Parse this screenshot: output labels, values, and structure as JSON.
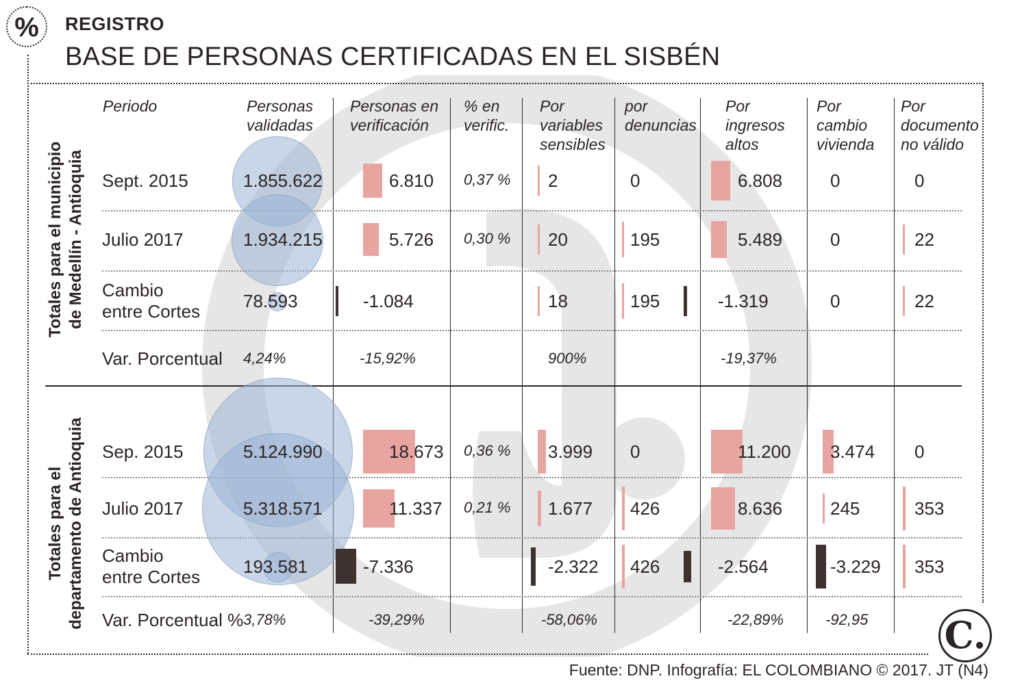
{
  "kicker": "REGISTRO",
  "title": "BASE DE PERSONAS CERTIFICADAS EN EL SISBÉN",
  "badge_symbol": "%",
  "source": "Fuente: DNP. Infografía: EL COLOMBIANO © 2017. JT (N4)",
  "logo_letter": "C.",
  "colors": {
    "bubble": "#9bb4d6",
    "bar_positive": "#e8a4a0",
    "bar_negative": "#3d3230",
    "watermark": "#e6e6e6",
    "text": "#2b2424"
  },
  "chart_data": {
    "type": "table",
    "columns": [
      {
        "key": "periodo",
        "label": "Periodo"
      },
      {
        "key": "validadas",
        "label": "Personas\nvalidadas"
      },
      {
        "key": "verificacion",
        "label": "Personas en\nverificación"
      },
      {
        "key": "pct_verif",
        "label": "% en\nverific."
      },
      {
        "key": "sensibles",
        "label": "Por\nvariables\nsensibles"
      },
      {
        "key": "denuncias",
        "label": "por\ndenuncias"
      },
      {
        "key": "ingresos",
        "label": "Por\ningresos\naltos"
      },
      {
        "key": "vivienda",
        "label": "Por\ncambio\nvivienda"
      },
      {
        "key": "documento",
        "label": "Por\ndocumento\nno válido"
      }
    ],
    "sections": [
      {
        "label": "Totales para el municipio\nde Medellín - Antioquia",
        "rows": [
          {
            "periodo": "Sept. 2015",
            "validadas": 1855622,
            "validadas_txt": "1.855.622",
            "verificacion": 6810,
            "verificacion_txt": "6.810",
            "pct_verif": "0,37 %",
            "sensibles": 2,
            "sensibles_txt": "2",
            "denuncias": 0,
            "denuncias_txt": "0",
            "ingresos": 6808,
            "ingresos_txt": "6.808",
            "vivienda": 0,
            "vivienda_txt": "0",
            "documento": 0,
            "documento_txt": "0"
          },
          {
            "periodo": "Julio 2017",
            "validadas": 1934215,
            "validadas_txt": "1.934.215",
            "verificacion": 5726,
            "verificacion_txt": "5.726",
            "pct_verif": "0,30 %",
            "sensibles": 20,
            "sensibles_txt": "20",
            "denuncias": 195,
            "denuncias_txt": "195",
            "ingresos": 5489,
            "ingresos_txt": "5.489",
            "vivienda": 0,
            "vivienda_txt": "0",
            "documento": 22,
            "documento_txt": "22"
          },
          {
            "periodo": "Cambio\nentre Cortes",
            "validadas": 78593,
            "validadas_txt": "78.593",
            "verificacion": -1084,
            "verificacion_txt": "-1.084",
            "pct_verif": "",
            "sensibles": 18,
            "sensibles_txt": "18",
            "denuncias": 195,
            "denuncias_txt": "195",
            "ingresos": -1319,
            "ingresos_txt": "-1.319",
            "vivienda": 0,
            "vivienda_txt": "0",
            "documento": 22,
            "documento_txt": "22"
          }
        ],
        "variation": {
          "label": "Var. Porcentual",
          "validadas": "4,24%",
          "verificacion": "-15,92%",
          "sensibles": "900%",
          "ingresos": "-19,37%",
          "vivienda": "",
          "documento": ""
        }
      },
      {
        "label": "Totales para el\ndepartamento de Antioquia",
        "rows": [
          {
            "periodo": "Sep. 2015",
            "validadas": 5124990,
            "validadas_txt": "5.124.990",
            "verificacion": 18673,
            "verificacion_txt": "18.673",
            "pct_verif": "0,36 %",
            "sensibles": 3999,
            "sensibles_txt": "3.999",
            "denuncias": 0,
            "denuncias_txt": "0",
            "ingresos": 11200,
            "ingresos_txt": "11.200",
            "vivienda": 3474,
            "vivienda_txt": "3.474",
            "documento": 0,
            "documento_txt": "0"
          },
          {
            "periodo": "Julio 2017",
            "validadas": 5318571,
            "validadas_txt": "5.318.571",
            "verificacion": 11337,
            "verificacion_txt": "11.337",
            "pct_verif": "0,21 %",
            "sensibles": 1677,
            "sensibles_txt": "1.677",
            "denuncias": 426,
            "denuncias_txt": "426",
            "ingresos": 8636,
            "ingresos_txt": "8.636",
            "vivienda": 245,
            "vivienda_txt": "245",
            "documento": 353,
            "documento_txt": "353"
          },
          {
            "periodo": "Cambio\nentre Cortes",
            "validadas": 193581,
            "validadas_txt": "193.581",
            "verificacion": -7336,
            "verificacion_txt": "-7.336",
            "pct_verif": "",
            "sensibles": -2322,
            "sensibles_txt": "-2.322",
            "denuncias": 426,
            "denuncias_txt": "426",
            "ingresos": -2564,
            "ingresos_txt": "-2.564",
            "vivienda": -3229,
            "vivienda_txt": "-3.229",
            "documento": 353,
            "documento_txt": "353"
          }
        ],
        "variation": {
          "label": "Var. Porcentual %",
          "validadas": "3,78%",
          "verificacion": "-39,29%",
          "sensibles": "-58,06%",
          "ingresos": "-22,89%",
          "vivienda": "-92,95",
          "documento": ""
        }
      }
    ]
  }
}
